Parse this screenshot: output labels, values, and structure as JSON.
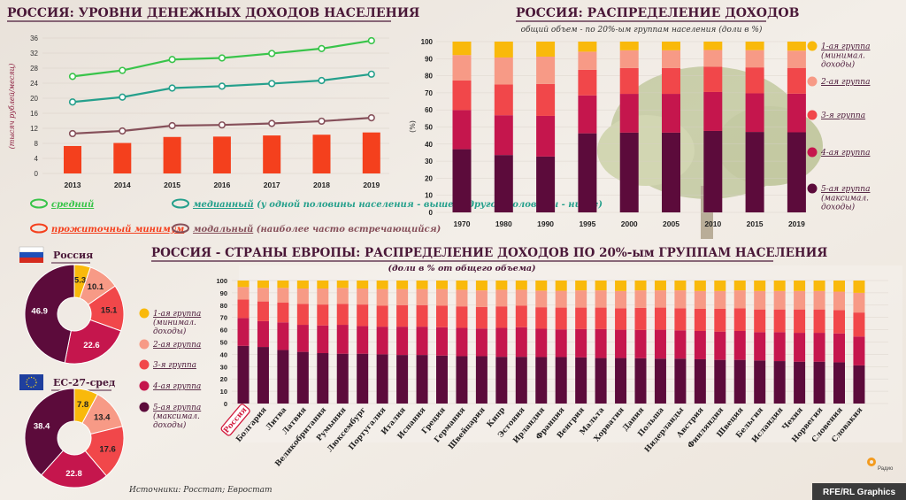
{
  "colors": {
    "g1": "#f9b90b",
    "g2": "#f79a86",
    "g3": "#f1474a",
    "g4": "#c5164d",
    "g5": "#5c0b3b",
    "title": "#4a1838",
    "avg_line": "#39c44a",
    "median_line": "#25a08c",
    "modal_line": "#86505a",
    "subsistence_bar": "#f4401d"
  },
  "legend_groups": [
    "1-ая группа\n(минимал.\nдоходы)",
    "2-ая группа",
    "3-я группа",
    "4-ая группа",
    "5-ая группа\n(максимал.\nдоходы)"
  ],
  "sources": "Источники: Росстат; Евростат",
  "credit": "RFE/RL Graphics",
  "logo_text": "Радио",
  "chart_data": [
    {
      "id": "income_levels",
      "type": "line",
      "title": "РОССИЯ: УРОВНИ ДЕНЕЖНЫХ ДОХОДОВ НАСЕЛЕНИЯ",
      "ylabel": "(тысяч рублей/месяц)",
      "x": [
        "2013",
        "2014",
        "2015",
        "2016",
        "2017",
        "2018",
        "2019"
      ],
      "ylim": [
        0,
        36
      ],
      "yticks": [
        0,
        4,
        8,
        12,
        16,
        20,
        24,
        28,
        32,
        36
      ],
      "series": [
        {
          "key": "avg",
          "name": "средний",
          "values": [
            25.8,
            27.4,
            30.3,
            30.7,
            31.9,
            33.2,
            35.3
          ]
        },
        {
          "key": "median",
          "name": "медианный",
          "name_rest": "(у одной половины населения -\nвыше, у другой половины - ниже)",
          "values": [
            19.0,
            20.3,
            22.7,
            23.2,
            23.9,
            24.7,
            26.4
          ]
        },
        {
          "key": "modal",
          "name": "модальный",
          "name_rest": "(наиболее часто встречающийся)",
          "values": [
            10.6,
            11.3,
            12.7,
            12.9,
            13.3,
            13.9,
            14.8
          ]
        },
        {
          "key": "subsistence",
          "name": "прожиточный минимум",
          "render": "bar",
          "values": [
            7.3,
            8.1,
            9.7,
            9.8,
            10.1,
            10.3,
            10.9
          ]
        }
      ]
    },
    {
      "id": "russia_distribution",
      "type": "bar",
      "stacked": true,
      "title": "РОССИЯ: РАСПРЕДЕЛЕНИЕ ДОХОДОВ",
      "subtitle": "общий объем - по 20%-ым группам населения (доли в %)",
      "ylabel": "(%)",
      "ylim": [
        0,
        100
      ],
      "yticks": [
        0,
        10,
        20,
        30,
        40,
        50,
        60,
        70,
        80,
        90,
        100
      ],
      "categories": [
        "1970",
        "1980",
        "1990",
        "1995",
        "2000",
        "2005",
        "2010",
        "2015",
        "2019"
      ],
      "series": [
        {
          "name": "5-ая группа",
          "values": [
            37.0,
            33.6,
            32.7,
            46.3,
            46.7,
            46.7,
            47.7,
            47.1,
            46.9
          ]
        },
        {
          "name": "4-ая группа",
          "values": [
            22.9,
            23.3,
            23.8,
            22.2,
            22.7,
            22.7,
            22.8,
            22.6,
            22.6
          ]
        },
        {
          "name": "3-я группа",
          "values": [
            17.4,
            18.0,
            18.7,
            15.0,
            15.1,
            15.1,
            14.8,
            15.2,
            15.1
          ]
        },
        {
          "name": "2-ая группа",
          "values": [
            14.8,
            15.8,
            16.0,
            10.6,
            10.4,
            10.4,
            9.8,
            10.1,
            10.1
          ]
        },
        {
          "name": "1-ая группа",
          "values": [
            7.9,
            9.3,
            8.8,
            5.9,
            5.1,
            5.1,
            4.9,
            5.0,
            5.3
          ]
        }
      ]
    },
    {
      "id": "russia_donut",
      "type": "pie",
      "title": "Россия",
      "values": [
        5.3,
        10.1,
        15.1,
        22.6,
        46.9
      ],
      "labels": [
        "5.3",
        "10.1",
        "15.1",
        "22.6",
        "46.9"
      ]
    },
    {
      "id": "eu_donut",
      "type": "pie",
      "title": "ЕС-27-сред",
      "values": [
        7.8,
        13.4,
        17.6,
        22.8,
        38.4
      ],
      "labels": [
        "7.8",
        "13.4",
        "17.6",
        "22.8",
        "38.4"
      ]
    },
    {
      "id": "europe_distribution",
      "type": "bar",
      "stacked": true,
      "title": "РОССИЯ - СТРАНЫ ЕВРОПЫ: РАСПРЕДЕЛЕНИЕ ДОХОДОВ ПО 20%-ым ГРУППАМ НАСЕЛЕНИЯ",
      "subtitle": "(доли в % от общего объема)",
      "ylim": [
        0,
        100
      ],
      "yticks": [
        0,
        10,
        20,
        30,
        40,
        50,
        60,
        70,
        80,
        90,
        100
      ],
      "highlight": "Россия",
      "categories": [
        "Россия",
        "Болгария",
        "Литва",
        "Латвия",
        "Великобритания",
        "Румыния",
        "Люксембург",
        "Португалия",
        "Италия",
        "Испания",
        "Греция",
        "Германия",
        "Швейцария",
        "Кипр",
        "Эстония",
        "Ирландия",
        "Франция",
        "Венгрия",
        "Мальта",
        "Хорватия",
        "Дания",
        "Польша",
        "Нидерланды",
        "Австрия",
        "Финляндия",
        "Швеция",
        "Бельгия",
        "Исландия",
        "Чехия",
        "Норвегия",
        "Словения",
        "Словакия"
      ],
      "series": [
        {
          "name": "5-ая группа",
          "values": [
            46.9,
            46.0,
            43.5,
            42.0,
            41.0,
            40.5,
            40.5,
            40.0,
            39.5,
            39.5,
            39.0,
            38.5,
            38.5,
            38.0,
            38.0,
            37.8,
            37.8,
            37.5,
            37.0,
            37.0,
            36.8,
            36.5,
            36.5,
            36.0,
            35.5,
            35.5,
            35.0,
            34.5,
            34.0,
            34.0,
            33.5,
            31.0
          ]
        },
        {
          "name": "4-ая группа",
          "values": [
            22.6,
            21.0,
            22.5,
            22.0,
            22.5,
            23.5,
            22.5,
            22.5,
            23.0,
            23.0,
            23.0,
            23.0,
            22.5,
            23.5,
            24.0,
            23.0,
            22.5,
            23.0,
            23.5,
            23.0,
            23.0,
            23.5,
            23.0,
            23.0,
            23.0,
            23.5,
            23.0,
            23.5,
            23.5,
            23.5,
            23.5,
            23.5
          ]
        },
        {
          "name": "3-я группа",
          "values": [
            15.1,
            16.0,
            16.0,
            17.0,
            17.0,
            17.0,
            17.5,
            17.0,
            17.5,
            17.5,
            17.5,
            17.5,
            17.5,
            17.5,
            17.5,
            17.5,
            17.7,
            17.5,
            17.5,
            17.5,
            18.0,
            18.0,
            18.0,
            18.0,
            18.5,
            18.5,
            18.5,
            18.5,
            19.0,
            19.0,
            19.0,
            19.5
          ]
        },
        {
          "name": "2-ая группа",
          "values": [
            10.1,
            11.0,
            12.0,
            12.5,
            13.0,
            13.0,
            13.0,
            13.5,
            13.0,
            13.0,
            13.5,
            13.5,
            13.5,
            13.5,
            13.0,
            13.5,
            13.7,
            14.0,
            14.0,
            14.0,
            14.2,
            14.0,
            14.5,
            14.5,
            14.5,
            14.5,
            15.0,
            15.0,
            15.0,
            15.0,
            15.0,
            16.0
          ]
        },
        {
          "name": "1-ая группа",
          "values": [
            5.3,
            6.0,
            6.0,
            6.5,
            6.5,
            6.0,
            6.5,
            7.0,
            7.0,
            7.0,
            7.0,
            7.5,
            8.0,
            7.5,
            7.5,
            8.2,
            8.3,
            8.0,
            8.0,
            8.5,
            8.0,
            8.0,
            8.0,
            8.5,
            8.5,
            8.0,
            8.5,
            8.5,
            8.5,
            8.5,
            9.0,
            10.0
          ]
        }
      ]
    }
  ]
}
